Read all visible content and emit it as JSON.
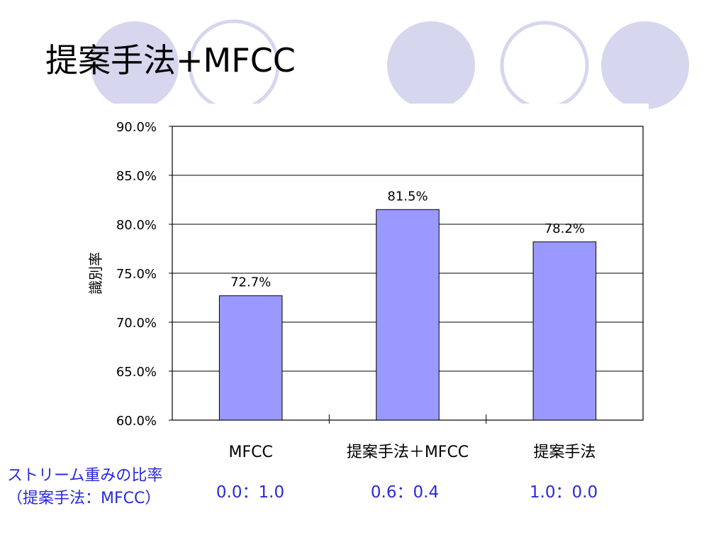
{
  "slide": {
    "title": "提案手法+MFCC",
    "ratio_label_line1": "ストリーム重みの比率",
    "ratio_label_line2": "（提案手法：MFCC）",
    "ratios": [
      "0.0：1.0",
      "0.6：0.4",
      "1.0：0.0"
    ],
    "colors": {
      "bar": "#9999ff",
      "ratio_text": "#2a2ad8",
      "deco": "#d6d6ee"
    }
  },
  "chart_data": {
    "type": "bar",
    "categories": [
      "MFCC",
      "提案手法＋MFCC",
      "提案手法"
    ],
    "values": [
      72.7,
      81.5,
      78.2
    ],
    "data_labels": [
      "72.7%",
      "81.5%",
      "78.2%"
    ],
    "ylabel": "識別率",
    "ylim": [
      60.0,
      90.0
    ],
    "yticks": [
      "60.0%",
      "65.0%",
      "70.0%",
      "75.0%",
      "80.0%",
      "85.0%",
      "90.0%"
    ],
    "grid": true,
    "legend": "none"
  }
}
